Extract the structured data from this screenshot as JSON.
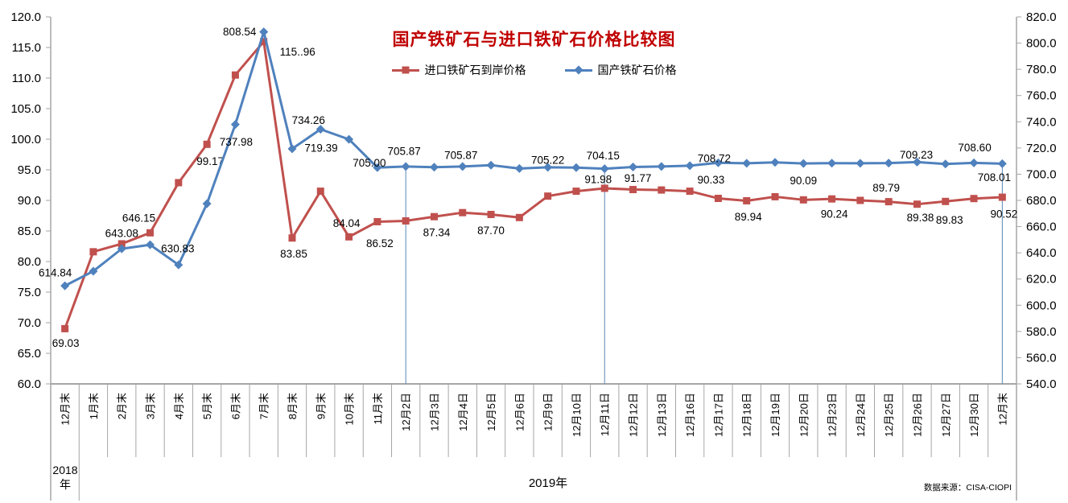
{
  "title": "国产铁矿石与进口铁矿石价格比较图",
  "source_note": "数据来源：CISA-CIOPI",
  "year_labels": {
    "left": "2018年",
    "right": "2019年"
  },
  "legend": [
    {
      "label": "进口铁矿石到岸价格",
      "marker": "square",
      "color": "#C0504D"
    },
    {
      "label": "国产铁矿石价格",
      "marker": "diamond",
      "color": "#4F81BD"
    }
  ],
  "colors": {
    "title": "#C00000",
    "series_imported": "#C0504D",
    "series_domestic": "#4F81BD",
    "drop_line": "#5B87B5",
    "axis_line": "#A6A6A6",
    "text": "#000000"
  },
  "chart_data": {
    "type": "line",
    "title": "国产铁矿石与进口铁矿石价格比较图",
    "legend_position": "top-center",
    "grid": false,
    "categories": [
      "12月末",
      "1月末",
      "2月末",
      "3月末",
      "4月末",
      "5月末",
      "6月末",
      "7月末",
      "8月末",
      "9月末",
      "10月末",
      "11月末",
      "12月2日",
      "12月3日",
      "12月4日",
      "12月5日",
      "12月6日",
      "12月9日",
      "12月10日",
      "12月11日",
      "12月12日",
      "12月13日",
      "12月16日",
      "12月17日",
      "12月18日",
      "12月19日",
      "12月20日",
      "12月23日",
      "12月24日",
      "12月25日",
      "12月26日",
      "12月27日",
      "12月30日",
      "12月末"
    ],
    "left_axis": {
      "min": 60,
      "max": 120,
      "step": 5,
      "tick_labels": [
        "120.0",
        "115.0",
        "110.0",
        "105.0",
        "100.0",
        "95.0",
        "90.0",
        "85.0",
        "80.0",
        "75.0",
        "70.0",
        "65.0",
        "60.0"
      ]
    },
    "right_axis": {
      "min": 540,
      "max": 820,
      "step": 20,
      "tick_labels": [
        "820.0",
        "800.0",
        "780.0",
        "760.0",
        "740.0",
        "720.0",
        "700.0",
        "680.0",
        "660.0",
        "640.0",
        "620.0",
        "600.0",
        "580.0",
        "560.0",
        "540.0"
      ]
    },
    "drop_line_indices": [
      12,
      19,
      33
    ],
    "series": [
      {
        "name": "进口铁矿石到岸价格",
        "axis": "left",
        "color": "#C0504D",
        "marker": "square",
        "values": [
          69.03,
          81.6,
          82.9,
          84.7,
          92.9,
          99.17,
          110.5,
          115.96,
          83.85,
          91.5,
          84.04,
          86.52,
          86.65,
          87.34,
          88.0,
          87.7,
          87.2,
          90.7,
          91.5,
          91.98,
          91.77,
          91.7,
          91.5,
          90.33,
          89.94,
          90.6,
          90.09,
          90.24,
          90.0,
          89.79,
          89.38,
          89.83,
          90.3,
          90.52
        ],
        "labels": [
          "69.03",
          null,
          null,
          null,
          null,
          "99.17",
          null,
          "115..96",
          "83.85",
          null,
          "84.04",
          "86.52",
          null,
          "87.34",
          null,
          "87.70",
          null,
          null,
          null,
          "91.98",
          "91.77",
          null,
          null,
          "90.33",
          "89.94",
          null,
          "90.09",
          "90.24",
          null,
          "89.79",
          "89.38",
          "89.83",
          null,
          "90.52"
        ],
        "label_offsets": [
          [
            1,
            18
          ],
          null,
          null,
          null,
          null,
          [
            4,
            21
          ],
          null,
          [
            42,
            13
          ],
          [
            2,
            20
          ],
          null,
          [
            -3,
            -17
          ],
          [
            3,
            27
          ],
          null,
          [
            3,
            20
          ],
          null,
          [
            0,
            20
          ],
          null,
          null,
          null,
          [
            -8,
            -11
          ],
          [
            6,
            -14
          ],
          null,
          null,
          [
            -9,
            -23
          ],
          [
            2,
            20
          ],
          null,
          [
            0,
            -24
          ],
          [
            3,
            19
          ],
          null,
          [
            -3,
            -17
          ],
          [
            4,
            17
          ],
          [
            5,
            23
          ],
          null,
          [
            2,
            21
          ]
        ]
      },
      {
        "name": "国产铁矿石价格",
        "axis": "right",
        "color": "#4F81BD",
        "marker": "diamond",
        "values": [
          614.84,
          626.0,
          643.08,
          646.15,
          630.83,
          677.5,
          737.98,
          808.54,
          719.39,
          734.26,
          726.6,
          705.0,
          705.87,
          705.3,
          705.87,
          706.9,
          704.3,
          705.22,
          705.0,
          704.15,
          705.5,
          705.9,
          706.5,
          708.72,
          708.3,
          709.0,
          708.2,
          708.4,
          708.3,
          708.5,
          709.23,
          707.8,
          708.6,
          708.01
        ],
        "labels": [
          "614.84",
          null,
          "643.08",
          "646.15",
          "630.83",
          null,
          "737.98",
          "808.54",
          "719.39",
          "734.26",
          null,
          "705.00",
          "705.87",
          null,
          "705.87",
          null,
          null,
          "705.22",
          null,
          "704.15",
          null,
          null,
          null,
          "708.72",
          null,
          null,
          null,
          null,
          null,
          null,
          "709.23",
          null,
          "708.60",
          "708.01"
        ],
        "label_offsets": [
          [
            -12,
            -16
          ],
          null,
          [
            0,
            -19
          ],
          [
            -14,
            -33
          ],
          [
            -1,
            -20
          ],
          null,
          [
            1,
            22
          ],
          [
            -30,
            0
          ],
          [
            36,
            -1
          ],
          [
            -15,
            -11
          ],
          null,
          [
            -10,
            -6
          ],
          [
            -2,
            -19
          ],
          null,
          [
            -2,
            -14
          ],
          null,
          null,
          [
            0,
            -9
          ],
          null,
          [
            -2,
            -16
          ],
          null,
          null,
          null,
          [
            -5,
            -5
          ],
          null,
          null,
          null,
          null,
          null,
          null,
          [
            -1,
            -9
          ],
          null,
          [
            1,
            -19
          ],
          [
            -10,
            17
          ]
        ]
      }
    ]
  }
}
